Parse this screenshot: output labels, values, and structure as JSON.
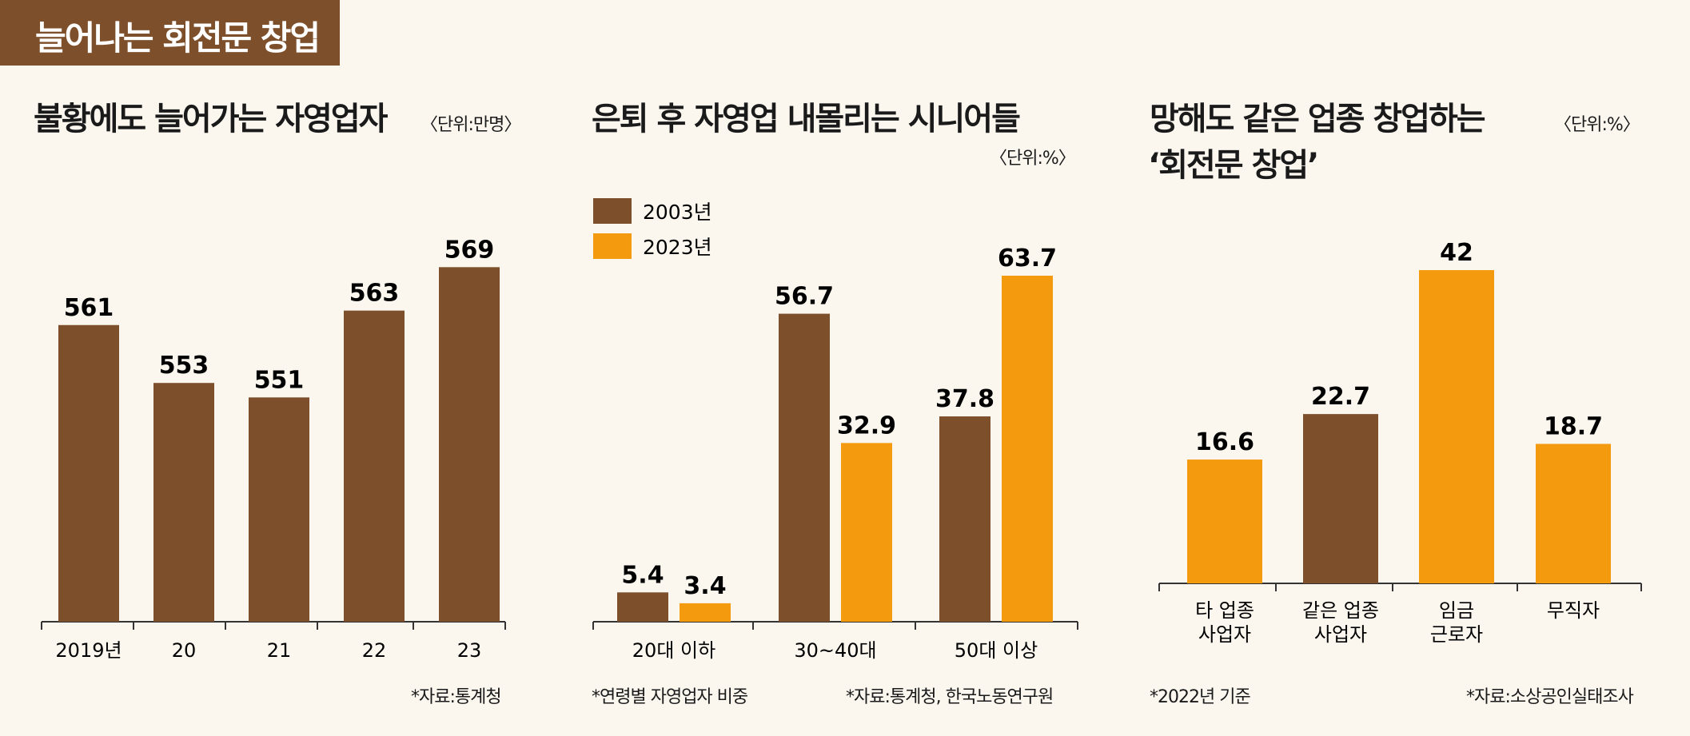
{
  "banner": "늘어나는 회전문 창업",
  "colors": {
    "brown": "#7d4f2b",
    "orange": "#f39a0e",
    "axis": "#333333"
  },
  "chart_data": [
    {
      "type": "bar",
      "title": "불황에도 늘어가는 자영업자",
      "unit": "〈단위:만명〉",
      "categories": [
        "2019년",
        "20",
        "21",
        "22",
        "23"
      ],
      "values": [
        561,
        553,
        551,
        563,
        569
      ],
      "value_labels": [
        "561",
        "553",
        "551",
        "563",
        "569"
      ],
      "ylim": [
        520,
        575
      ],
      "source": "*자료:통계청"
    },
    {
      "type": "bar",
      "title": "은퇴 후 자영업 내몰리는 시니어들",
      "unit": "〈단위:%〉",
      "categories": [
        "20대 이하",
        "30~40대",
        "50대 이상"
      ],
      "series": [
        {
          "name": "2003년",
          "color": "#7d4f2b",
          "values": [
            5.4,
            56.7,
            37.8
          ],
          "labels": [
            "5.4",
            "56.7",
            "37.8"
          ]
        },
        {
          "name": "2023년",
          "color": "#f39a0e",
          "values": [
            3.4,
            32.9,
            63.7
          ],
          "labels": [
            "3.4",
            "32.9",
            "63.7"
          ]
        }
      ],
      "ylim": [
        0,
        70
      ],
      "footnote": "*연령별 자영업자 비중",
      "source": "*자료:통계청, 한국노동연구원"
    },
    {
      "type": "bar",
      "title_line1": "망해도 같은 업종 창업하는",
      "title_line2": "‘회전문 창업’",
      "unit": "〈단위:%〉",
      "categories": [
        [
          "타 업종",
          "사업자"
        ],
        [
          "같은 업종",
          "사업자"
        ],
        [
          "임금",
          "근로자"
        ],
        [
          "무직자"
        ]
      ],
      "values": [
        16.6,
        22.7,
        42,
        18.7
      ],
      "value_labels": [
        "16.6",
        "22.7",
        "42",
        "18.7"
      ],
      "bar_colors": [
        "#f39a0e",
        "#7d4f2b",
        "#f39a0e",
        "#f39a0e"
      ],
      "ylim": [
        0,
        46
      ],
      "footnote": "*2022년 기준",
      "source": "*자료:소상공인실태조사"
    }
  ]
}
